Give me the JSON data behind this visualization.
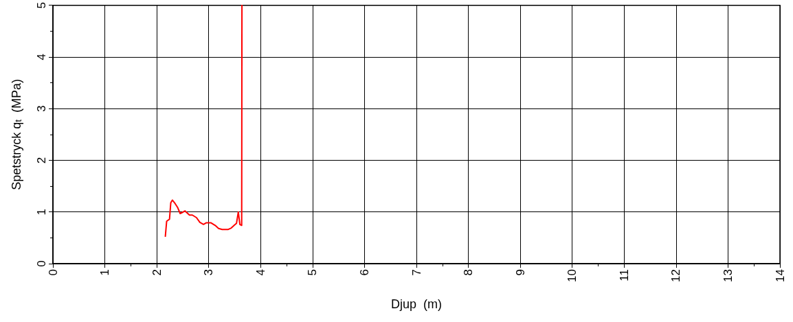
{
  "chart_data": {
    "type": "line",
    "xlabel": "Djup  (m)",
    "ylabel": "Spetstryck q$_{t}$  (MPa)",
    "series": [
      {
        "color": "#ff0000",
        "x": [
          2.165,
          2.19,
          2.245,
          2.27,
          2.3,
          2.355,
          2.4,
          2.45,
          2.49,
          2.545,
          2.575,
          2.63,
          2.685,
          2.765,
          2.83,
          2.9,
          2.95,
          3.045,
          3.125,
          3.19,
          3.26,
          3.37,
          3.435,
          3.5,
          3.535,
          3.57,
          3.6,
          3.635,
          3.64
        ],
        "values": [
          0.53,
          0.82,
          0.86,
          1.18,
          1.23,
          1.16,
          1.09,
          0.97,
          0.99,
          1.02,
          0.99,
          0.94,
          0.94,
          0.89,
          0.8,
          0.76,
          0.79,
          0.79,
          0.74,
          0.68,
          0.66,
          0.66,
          0.69,
          0.75,
          0.78,
          1.0,
          0.76,
          0.74,
          5
        ]
      }
    ],
    "xlim": [
      0,
      14
    ],
    "xticks": [
      0,
      1,
      2,
      3,
      4,
      5,
      6,
      7,
      8,
      9,
      10,
      11,
      12,
      13,
      14
    ],
    "ylim": [
      0,
      5
    ],
    "yticks": [
      0,
      1,
      2,
      3,
      4,
      5
    ],
    "grid": true,
    "marker": "none",
    "line_style": "solid"
  }
}
